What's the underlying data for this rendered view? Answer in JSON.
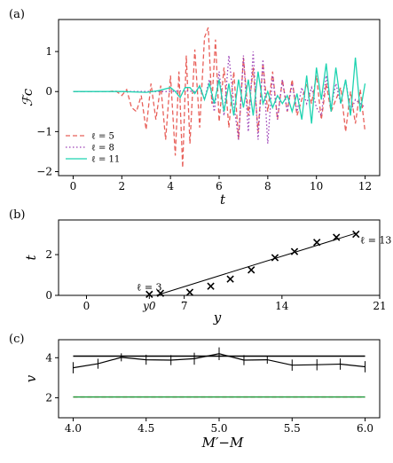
{
  "chart_data": [
    {
      "panel": "(a)",
      "type": "line",
      "xlabel": "t",
      "ylabel": "ℱc",
      "xlim": [
        -0.6,
        12.6
      ],
      "ylim": [
        -2.1,
        1.8
      ],
      "xticks": [
        "0",
        "2",
        "4",
        "6",
        "8",
        "10",
        "12"
      ],
      "yticks": [
        "1",
        "0",
        "−1",
        "−2"
      ],
      "legend_position": "lower-left",
      "series": [
        {
          "name": "ℓ = 5",
          "color": "#e8605a",
          "dash": "dashed",
          "x": [
            0,
            0.5,
            1,
            1.5,
            1.75,
            2,
            2.2,
            2.4,
            2.6,
            2.8,
            3,
            3.2,
            3.4,
            3.6,
            3.8,
            4,
            4.2,
            4.35,
            4.5,
            4.65,
            4.8,
            5,
            5.2,
            5.4,
            5.55,
            5.7,
            5.85,
            6,
            6.2,
            6.4,
            6.6,
            6.8,
            7,
            7.2,
            7.4,
            7.6,
            7.8,
            8,
            8.2,
            8.4,
            8.6,
            8.8,
            9,
            9.2,
            9.4,
            9.6,
            9.8,
            10,
            10.2,
            10.4,
            10.6,
            10.8,
            11,
            11.2,
            11.4,
            11.6,
            11.8,
            12
          ],
          "y": [
            0,
            0,
            0,
            0,
            0.02,
            -0.1,
            0.05,
            -0.4,
            -0.5,
            -0.1,
            -0.95,
            0.2,
            -0.7,
            0.15,
            -1.2,
            0.4,
            -1.6,
            0.5,
            -1.9,
            0.9,
            -1.3,
            1.05,
            -0.9,
            1.35,
            1.6,
            -0.3,
            1.3,
            -0.75,
            0.6,
            -0.9,
            0.5,
            -1.2,
            0.85,
            -0.6,
            0.6,
            -1.0,
            0.7,
            -0.5,
            0.5,
            -0.7,
            0.3,
            -0.5,
            0.3,
            -0.6,
            -0.2,
            0.2,
            -0.3,
            0.4,
            -0.7,
            0.2,
            -0.5,
            -0.2,
            0.1,
            -1.0,
            0.0,
            -0.8,
            0.05,
            -1.0
          ]
        },
        {
          "name": "ℓ = 8",
          "color": "#9b3fb5",
          "dash": "dotted",
          "x": [
            0,
            1,
            2,
            3,
            4,
            4.5,
            5,
            5.2,
            5.4,
            5.6,
            5.8,
            6,
            6.2,
            6.4,
            6.6,
            6.8,
            7,
            7.2,
            7.4,
            7.6,
            7.8,
            8,
            8.2,
            8.4,
            8.6,
            8.8,
            9,
            9.2,
            9.4,
            9.6,
            9.8,
            10,
            10.2,
            10.4,
            10.6,
            10.8,
            11,
            11.2,
            11.4,
            11.6,
            11.8,
            12
          ],
          "y": [
            0,
            0,
            0,
            0,
            0,
            0.02,
            0,
            0.1,
            -0.2,
            0.3,
            -0.5,
            0.5,
            -0.6,
            0.9,
            -0.3,
            -1.2,
            0.9,
            -1.0,
            1.0,
            -1.2,
            0.8,
            -1.3,
            0.4,
            -0.7,
            0.3,
            -0.5,
            0.2,
            -0.5,
            0.1,
            -0.3,
            0.1,
            -0.4,
            -0.6,
            0.4,
            -0.4,
            0.2,
            -0.3,
            0.3,
            -0.5,
            -0.2,
            -0.3,
            -0.4
          ]
        },
        {
          "name": "ℓ = 11",
          "color": "#1dd3b0",
          "dash": "solid",
          "x": [
            0,
            1,
            2,
            3,
            3.5,
            4,
            4.2,
            4.4,
            4.6,
            4.8,
            5,
            5.2,
            5.4,
            5.6,
            5.8,
            6,
            6.2,
            6.4,
            6.6,
            6.8,
            7,
            7.2,
            7.4,
            7.6,
            7.8,
            8,
            8.2,
            8.4,
            8.6,
            8.8,
            9,
            9.2,
            9.4,
            9.6,
            9.8,
            10,
            10.2,
            10.4,
            10.6,
            10.8,
            11,
            11.2,
            11.4,
            11.6,
            11.8,
            12
          ],
          "y": [
            0,
            0,
            0,
            -0.02,
            0.02,
            0.1,
            0.0,
            -0.15,
            0.1,
            0.1,
            -0.05,
            0.15,
            -0.2,
            0.2,
            -0.3,
            0.3,
            -0.5,
            0.2,
            -0.6,
            0.3,
            -0.4,
            0.3,
            -0.6,
            0.5,
            -0.3,
            0.0,
            -0.4,
            -0.1,
            -0.3,
            -0.1,
            -0.5,
            -0.05,
            -0.7,
            0.4,
            -0.8,
            0.6,
            -0.2,
            0.7,
            -0.5,
            0.6,
            -0.3,
            0.3,
            -0.6,
            0.85,
            -0.5,
            0.2
          ]
        }
      ]
    },
    {
      "panel": "(b)",
      "type": "scatter",
      "xlabel": "y",
      "ylabel": "t",
      "xlim": [
        -2,
        21
      ],
      "ylim": [
        0,
        3.7
      ],
      "xticks": [
        {
          "value": 0,
          "label": "0"
        },
        {
          "value": 4.5,
          "label": "y0"
        },
        {
          "value": 7,
          "label": "7"
        },
        {
          "value": 14,
          "label": "14"
        },
        {
          "value": 21,
          "label": "21"
        }
      ],
      "yticks": [
        "0",
        "2"
      ],
      "points": [
        {
          "x": 4.5,
          "y": 0.05
        },
        {
          "x": 5.3,
          "y": 0.1
        },
        {
          "x": 7.4,
          "y": 0.15
        },
        {
          "x": 8.9,
          "y": 0.45
        },
        {
          "x": 10.3,
          "y": 0.8
        },
        {
          "x": 11.8,
          "y": 1.25
        },
        {
          "x": 13.5,
          "y": 1.85
        },
        {
          "x": 14.9,
          "y": 2.15
        },
        {
          "x": 16.5,
          "y": 2.6
        },
        {
          "x": 17.9,
          "y": 2.85
        },
        {
          "x": 19.3,
          "y": 3.0
        }
      ],
      "fit_line": {
        "x": [
          5.0,
          19.3
        ],
        "y": [
          0.0,
          3.05
        ]
      },
      "annotations": [
        {
          "text": "ℓ = 3",
          "x": 4.5,
          "y": 0.25
        },
        {
          "text": "ℓ = 13",
          "x": 19.6,
          "y": 2.55
        }
      ]
    },
    {
      "panel": "(c)",
      "type": "line",
      "xlabel": "M′−M",
      "ylabel": "v",
      "xlim": [
        3.9,
        6.1
      ],
      "ylim": [
        1,
        4.9
      ],
      "xticks": [
        "4.0",
        "4.5",
        "5.0",
        "5.5",
        "6.0"
      ],
      "yticks": [
        "4",
        "2"
      ],
      "series": [
        {
          "color": "#000000",
          "errorbars": true,
          "x": [
            4.0,
            4.17,
            4.33,
            4.5,
            4.67,
            4.83,
            5.0,
            5.17,
            5.33,
            5.5,
            5.67,
            5.83,
            6.0
          ],
          "y": [
            3.5,
            3.7,
            4.02,
            3.9,
            3.88,
            3.95,
            4.2,
            3.88,
            3.9,
            3.63,
            3.65,
            3.68,
            3.55
          ],
          "err": [
            0.28,
            0.25,
            0.2,
            0.25,
            0.25,
            0.3,
            0.32,
            0.25,
            0.2,
            0.28,
            0.28,
            0.28,
            0.28
          ]
        },
        {
          "color": "#000000",
          "x": [
            4.0,
            6.0
          ],
          "y": [
            4.08,
            4.08
          ]
        },
        {
          "color": "#e8605a",
          "dash": "dashed",
          "x": [
            4.0,
            6.0
          ],
          "y": [
            2.04,
            2.04
          ]
        },
        {
          "color": "#1a9a3a",
          "x": [
            4.0,
            6.0
          ],
          "y": [
            2.04,
            2.04
          ]
        }
      ]
    }
  ]
}
